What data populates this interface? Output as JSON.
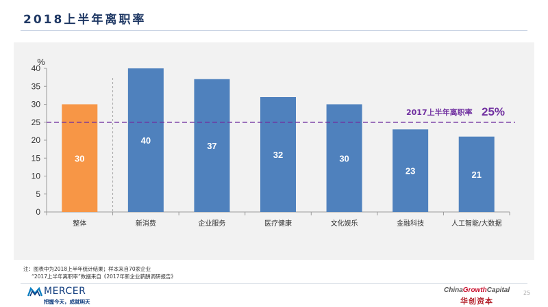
{
  "slide": {
    "title": "2018上半年离职率",
    "notes_line1": "注：图表中为2018上半年统计结果；样本来自70家企业",
    "notes_line2": "“2017上半年离职率”数据来自《2017年新企业薪酬调研报告》",
    "page_number": "25"
  },
  "branding": {
    "mercer_name": "MERCER",
    "mercer_slogan": "把握今天，成就明天",
    "cgc_part1": "China",
    "cgc_part2": "Growth",
    "cgc_part3": "Capital",
    "cgc_chinese": "华创资本"
  },
  "colors": {
    "highlight_bar": "#f79646",
    "bar": "#4f81bd",
    "reference_line": "#7030a0"
  },
  "chart_data": {
    "type": "bar",
    "unit_label": "%",
    "categories": [
      "整体",
      "新消费",
      "企业服务",
      "医疗健康",
      "文化娱乐",
      "金融科技",
      "人工智能/大数据"
    ],
    "values": [
      30,
      40,
      37,
      32,
      30,
      23,
      21
    ],
    "data_labels": [
      "30",
      "40",
      "37",
      "32",
      "30",
      "23",
      "21"
    ],
    "highlight_index": 0,
    "ylim": [
      0,
      40
    ],
    "yticks": [
      "0",
      "5",
      "10",
      "15",
      "20",
      "25",
      "30",
      "35",
      "40"
    ],
    "grid": false,
    "reference_line": {
      "value": 25,
      "label_text": "2017上半年离职率",
      "label_value": "25%"
    }
  }
}
